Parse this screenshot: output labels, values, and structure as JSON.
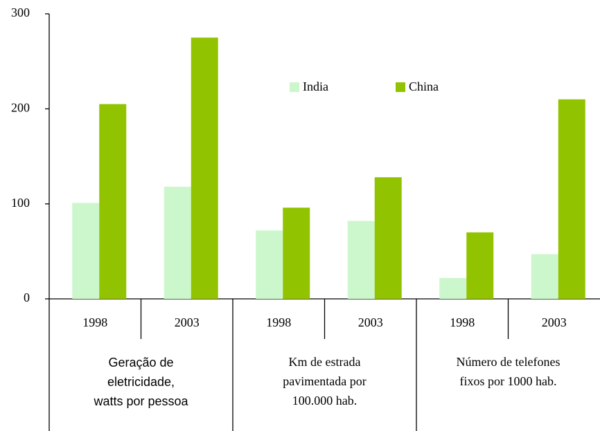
{
  "chart_data": {
    "type": "bar",
    "categories": [
      "1998",
      "2003",
      "1998",
      "2003",
      "1998",
      "2003"
    ],
    "groups": [
      [
        "Geração de",
        "eletricidade,",
        "watts por pessoa"
      ],
      [
        "Km de estrada",
        "pavimentada por",
        "100.000 hab."
      ],
      [
        "Número de telefones",
        "fixos por 1000 hab."
      ]
    ],
    "series": [
      {
        "name": "India",
        "color": "#ccf7cc",
        "values": [
          101,
          118,
          72,
          82,
          22,
          47
        ]
      },
      {
        "name": "China",
        "color": "#92c300",
        "values": [
          205,
          275,
          96,
          128,
          70,
          210
        ]
      }
    ],
    "ylim": [
      0,
      300
    ],
    "yticks": [
      0,
      100,
      200,
      300
    ]
  }
}
